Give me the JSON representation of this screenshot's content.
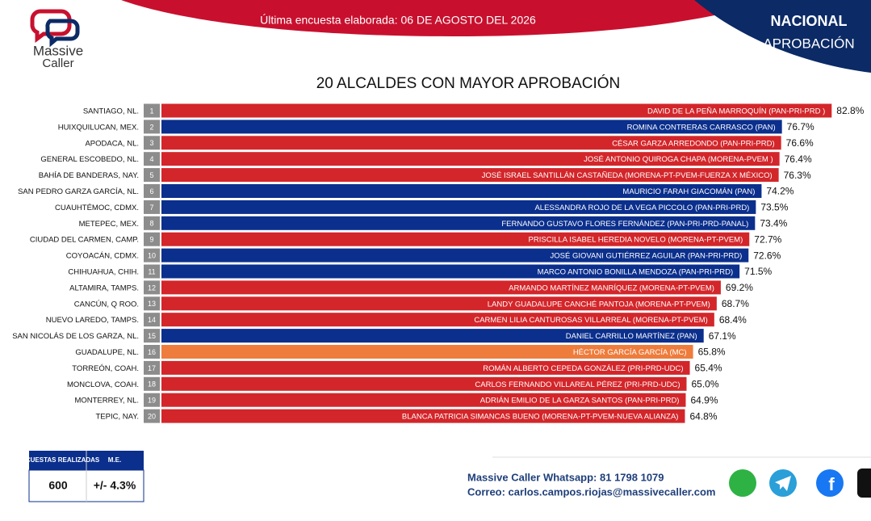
{
  "header": {
    "logo_top": "Massive",
    "logo_bottom": "Caller",
    "survey_date": "Última encuesta elaborada: 06 DE AGOSTO DEL 2026",
    "scope": "NACIONAL",
    "metric": "APROBACIÓN"
  },
  "chart_data": {
    "type": "bar",
    "orientation": "horizontal",
    "title": "20 ALCALDES CON MAYOR APROBACIÓN",
    "ranks": [
      1,
      2,
      3,
      4,
      5,
      6,
      7,
      8,
      9,
      10,
      11,
      12,
      13,
      14,
      15,
      16,
      17,
      18,
      19,
      20
    ],
    "categories": [
      "SANTIAGO, NL.",
      "HUIXQUILUCAN, MEX.",
      "APODACA, NL.",
      "GENERAL ESCOBEDO, NL.",
      "BAHÍA DE BANDERAS, NAY.",
      "SAN PEDRO GARZA GARCÍA, NL.",
      "CUAUHTÉMOC, CDMX.",
      "METEPEC, MEX.",
      "CIUDAD DEL CARMEN, CAMP.",
      "COYOACÁN, CDMX.",
      "CHIHUAHUA, CHIH.",
      "ALTAMIRA, TAMPS.",
      "CANCÚN, Q ROO.",
      "NUEVO LAREDO, TAMPS.",
      "SAN NICOLÁS DE LOS GARZA, NL.",
      "GUADALUPE, NL.",
      "TORREÓN, COAH.",
      "MONCLOVA, COAH.",
      "MONTERREY, NL.",
      "TEPIC, NAY."
    ],
    "labels": [
      "DAVID DE LA PEÑA MARROQUÍN (PAN-PRI-PRD )",
      "ROMINA CONTRERAS CARRASCO (PAN)",
      "CÉSAR GARZA ARREDONDO (PAN-PRI-PRD)",
      "JOSÉ ANTONIO QUIROGA CHAPA (MORENA-PVEM )",
      "JOSÉ ISRAEL SANTILLÁN CASTAÑEDA (MORENA-PT-PVEM-FUERZA X MÉXICO)",
      "MAURICIO FARAH GIACOMÁN (PAN)",
      "ALESSANDRA ROJO DE LA VEGA PICCOLO (PAN-PRI-PRD)",
      "FERNANDO GUSTAVO FLORES FERNÁNDEZ (PAN-PRI-PRD-PANAL)",
      "PRISCILLA ISABEL HEREDIA NOVELO (MORENA-PT-PVEM)",
      "JOSÉ GIOVANI GUTIÉRREZ AGUILAR (PAN-PRI-PRD)",
      "MARCO ANTONIO BONILLA MENDOZA (PAN-PRI-PRD)",
      "ARMANDO MARTÍNEZ MANRÍQUEZ (MORENA-PT-PVEM)",
      "LANDY GUADALUPE CANCHÉ PANTOJA (MORENA-PT-PVEM)",
      "CARMEN LILIA CANTUROSAS VILLARREAL (MORENA-PT-PVEM)",
      "DANIEL CARRILLO MARTÍNEZ (PAN)",
      "HÉCTOR GARCÍA GARCÍA (MC)",
      "ROMÁN ALBERTO CEPEDA GONZÁLEZ (PRI-PRD-UDC)",
      "CARLOS FERNANDO VILLAREAL PÉREZ (PRI-PRD-UDC)",
      "ADRIÁN EMILIO DE LA GARZA SANTOS (PAN-PRI-PRD)",
      "BLANCA PATRICIA SIMANCAS BUENO (MORENA-PT-PVEM-NUEVA ALIANZA)"
    ],
    "values": [
      82.8,
      76.7,
      76.6,
      76.4,
      76.3,
      74.2,
      73.5,
      73.4,
      72.7,
      72.6,
      71.5,
      69.2,
      68.7,
      68.4,
      67.1,
      65.8,
      65.4,
      65.0,
      64.9,
      64.8
    ],
    "value_labels": [
      "82.8%",
      "76.7%",
      "76.6%",
      "76.4%",
      "76.3%",
      "74.2%",
      "73.5%",
      "73.4%",
      "72.7%",
      "72.6%",
      "71.5%",
      "69.2%",
      "68.7%",
      "68.4%",
      "67.1%",
      "65.8%",
      "65.4%",
      "65.0%",
      "64.9%",
      "64.8%"
    ],
    "colors": [
      "#d3262a",
      "#0b2f8c",
      "#d3262a",
      "#d3262a",
      "#d3262a",
      "#0b2f8c",
      "#0b2f8c",
      "#0b2f8c",
      "#d3262a",
      "#0b2f8c",
      "#0b2f8c",
      "#d3262a",
      "#d3262a",
      "#d3262a",
      "#0b2f8c",
      "#ee7c3c",
      "#d3262a",
      "#d3262a",
      "#d3262a",
      "#d3262a"
    ]
  },
  "footer": {
    "surveys_header": "ENCUESTAS REALIZADAS",
    "margin_header": "M.E.",
    "surveys": "600",
    "margin": "+/- 4.3%",
    "whatsapp": "Massive Caller Whatsapp: 81 1798 1079",
    "email": "Correo: carlos.campos.riojas@massivecaller.com"
  }
}
